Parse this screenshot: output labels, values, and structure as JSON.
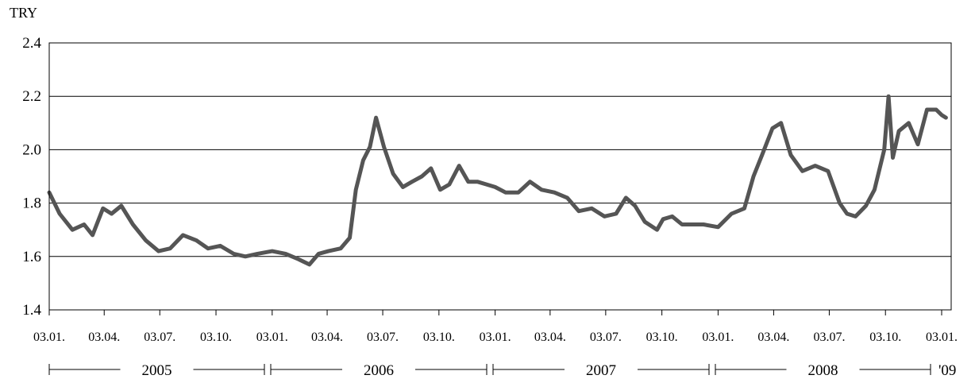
{
  "chart_data": {
    "type": "line",
    "title": "",
    "xlabel": "",
    "ylabel": "TRY",
    "ylim": [
      1.4,
      2.4
    ],
    "y_ticks": [
      "1.4",
      "1.6",
      "1.8",
      "2.0",
      "2.2",
      "2.4"
    ],
    "x_ticks": [
      "03.01.",
      "03.04.",
      "03.07.",
      "03.10.",
      "03.01.",
      "03.04.",
      "03.07.",
      "03.10.",
      "03.01.",
      "03.04.",
      "03.07.",
      "03.10.",
      "03.01.",
      "03.04.",
      "03.07.",
      "03.10.",
      "03.01."
    ],
    "year_labels": [
      "2005",
      "2006",
      "2007",
      "2008",
      "'09"
    ],
    "grid": "horizontal",
    "legend": "none",
    "line_color": "#555555",
    "series": [
      {
        "x": [
          "2005-01-03",
          "2005-01-20",
          "2005-02-10",
          "2005-03-01",
          "2005-03-15",
          "2005-04-01",
          "2005-04-15",
          "2005-05-01",
          "2005-05-20",
          "2005-06-10",
          "2005-07-01",
          "2005-07-20",
          "2005-08-10",
          "2005-09-01",
          "2005-09-20",
          "2005-10-10",
          "2005-11-01",
          "2005-11-20",
          "2005-12-10",
          "2006-01-03",
          "2006-01-25",
          "2006-02-15",
          "2006-03-05",
          "2006-03-20",
          "2006-04-05",
          "2006-04-25",
          "2006-05-10",
          "2006-05-20",
          "2006-06-01",
          "2006-06-12",
          "2006-06-22",
          "2006-07-05",
          "2006-07-20",
          "2006-08-05",
          "2006-08-20",
          "2006-09-05",
          "2006-09-20",
          "2006-10-05",
          "2006-10-20",
          "2006-11-05",
          "2006-11-20",
          "2006-12-05",
          "2006-12-20",
          "2007-01-03",
          "2007-01-20",
          "2007-02-10",
          "2007-03-01",
          "2007-03-20",
          "2007-04-10",
          "2007-05-01",
          "2007-05-20",
          "2007-06-10",
          "2007-07-01",
          "2007-07-20",
          "2007-08-05",
          "2007-08-20",
          "2007-09-05",
          "2007-09-25",
          "2007-10-05",
          "2007-10-20",
          "2007-11-05",
          "2007-11-20",
          "2007-12-10",
          "2008-01-03",
          "2008-01-25",
          "2008-02-15",
          "2008-03-01",
          "2008-03-15",
          "2008-04-01",
          "2008-04-15",
          "2008-05-01",
          "2008-05-20",
          "2008-06-10",
          "2008-07-01",
          "2008-07-20",
          "2008-08-01",
          "2008-08-15",
          "2008-09-01",
          "2008-09-15",
          "2008-10-01",
          "2008-10-08",
          "2008-10-15",
          "2008-10-25",
          "2008-11-10",
          "2008-11-25",
          "2008-12-10",
          "2008-12-25",
          "2009-01-03",
          "2009-01-10"
        ],
        "y": [
          1.84,
          1.76,
          1.7,
          1.72,
          1.68,
          1.78,
          1.76,
          1.79,
          1.72,
          1.66,
          1.62,
          1.63,
          1.68,
          1.66,
          1.63,
          1.64,
          1.61,
          1.6,
          1.61,
          1.62,
          1.61,
          1.59,
          1.57,
          1.61,
          1.62,
          1.63,
          1.67,
          1.85,
          1.96,
          2.01,
          2.12,
          2.01,
          1.91,
          1.86,
          1.88,
          1.9,
          1.93,
          1.85,
          1.87,
          1.94,
          1.88,
          1.88,
          1.87,
          1.86,
          1.84,
          1.84,
          1.88,
          1.85,
          1.84,
          1.82,
          1.77,
          1.78,
          1.75,
          1.76,
          1.82,
          1.79,
          1.73,
          1.7,
          1.74,
          1.75,
          1.72,
          1.72,
          1.72,
          1.71,
          1.76,
          1.78,
          1.9,
          1.98,
          2.08,
          2.1,
          1.98,
          1.92,
          1.94,
          1.92,
          1.8,
          1.76,
          1.75,
          1.79,
          1.85,
          2.0,
          2.2,
          1.97,
          2.07,
          2.1,
          2.02,
          2.15,
          2.15,
          2.13,
          2.12
        ]
      }
    ]
  }
}
